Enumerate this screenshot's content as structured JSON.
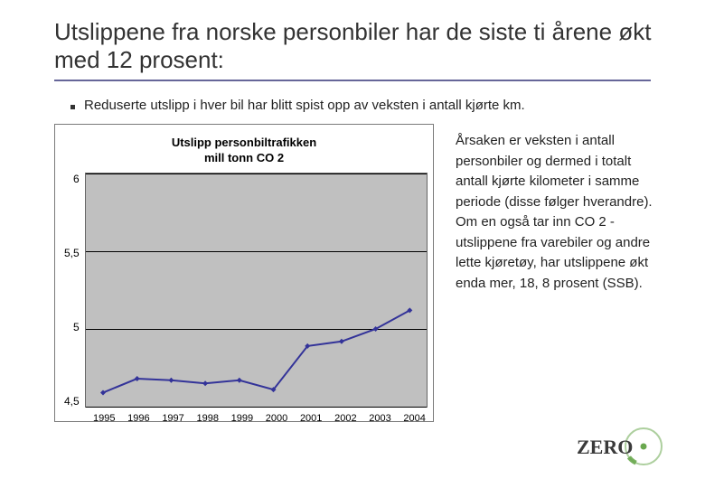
{
  "title": "Utslippene fra norske personbiler har de siste ti årene økt med 12 prosent:",
  "bullet": "Reduserte utslipp i hver bil har blitt spist opp av veksten i antall kjørte km.",
  "side_paragraph": "Årsaken er veksten i antall personbiler og dermed i totalt antall kjørte kilometer i samme periode (disse følger hverandre). Om en også tar inn CO 2 -utslippene fra varebiler og andre lette kjøretøy, har utslippene økt enda mer, 18, 8 prosent (SSB).",
  "chart": {
    "type": "line",
    "title_line1": "Utslipp personbiltrafikken",
    "title_line2": "mill tonn CO 2",
    "title_fontsize": 13,
    "x_categories": [
      "1995",
      "1996",
      "1997",
      "1998",
      "1999",
      "2000",
      "2001",
      "2002",
      "2003",
      "2004"
    ],
    "y_values": [
      4.59,
      4.68,
      4.67,
      4.65,
      4.67,
      4.61,
      4.89,
      4.92,
      5.0,
      5.12
    ],
    "y_ticks": [
      "6",
      "5,5",
      "5",
      "4,5"
    ],
    "ylim": [
      4.5,
      6.0
    ],
    "ytick_values": [
      6.0,
      5.5,
      5.0,
      4.5
    ],
    "line_color": "#333399",
    "marker_color": "#333399",
    "marker_style": "diamond",
    "marker_size": 6,
    "line_width": 2,
    "plot_bg": "#c0c0c0",
    "grid_color": "#000000",
    "label_fontsize": 12
  },
  "logo": {
    "text": "ZERO",
    "text_color": "#3a3a3a",
    "ring_color": "#6aa84f",
    "dot_color": "#6aa84f"
  },
  "colors": {
    "title_underline": "#666699",
    "page_bg": "#ffffff"
  }
}
